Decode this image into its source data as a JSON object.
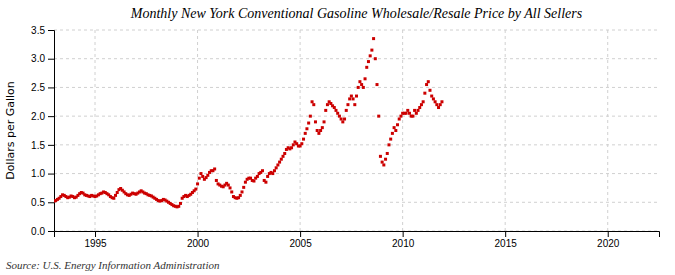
{
  "chart_data": {
    "type": "scatter",
    "title": "Monthly New York Conventional Gasoline Wholesale/Resale Price by All Sellers",
    "ylabel": "Dollars per Gallon",
    "annotations": [
      "Source: U.S. Energy Information Administration"
    ],
    "color": "#CC0000",
    "marker": "square",
    "grid": true,
    "xlim": [
      1993.0,
      2022.5
    ],
    "ylim": [
      0.0,
      3.5
    ],
    "xticks": [
      1995,
      2000,
      2005,
      2010,
      2015,
      2020
    ],
    "yticks": [
      {
        "value": 0.0,
        "label": "0.0"
      },
      0.5,
      {
        "value": 1.0,
        "label": "1.0"
      },
      1.5,
      {
        "value": 2.0,
        "label": "2.0"
      },
      2.5,
      {
        "value": 3.0,
        "label": "3.0"
      },
      3.5
    ],
    "x": [
      1993.0,
      1993.083,
      1993.167,
      1993.25,
      1993.333,
      1993.417,
      1993.5,
      1993.583,
      1993.667,
      1993.75,
      1993.833,
      1993.917,
      1994.0,
      1994.083,
      1994.167,
      1994.25,
      1994.333,
      1994.417,
      1994.5,
      1994.583,
      1994.667,
      1994.75,
      1994.833,
      1994.917,
      1995.0,
      1995.083,
      1995.167,
      1995.25,
      1995.333,
      1995.417,
      1995.5,
      1995.583,
      1995.667,
      1995.75,
      1995.833,
      1995.917,
      1996.0,
      1996.083,
      1996.167,
      1996.25,
      1996.333,
      1996.417,
      1996.5,
      1996.583,
      1996.667,
      1996.75,
      1996.833,
      1996.917,
      1997.0,
      1997.083,
      1997.167,
      1997.25,
      1997.333,
      1997.417,
      1997.5,
      1997.583,
      1997.667,
      1997.75,
      1997.833,
      1997.917,
      1998.0,
      1998.083,
      1998.167,
      1998.25,
      1998.333,
      1998.417,
      1998.5,
      1998.583,
      1998.667,
      1998.75,
      1998.833,
      1998.917,
      1999.0,
      1999.083,
      1999.167,
      1999.25,
      1999.333,
      1999.417,
      1999.5,
      1999.583,
      1999.667,
      1999.75,
      1999.833,
      1999.917,
      2000.0,
      2000.083,
      2000.167,
      2000.25,
      2000.333,
      2000.417,
      2000.5,
      2000.583,
      2000.667,
      2000.75,
      2000.833,
      2000.917,
      2001.0,
      2001.083,
      2001.167,
      2001.25,
      2001.333,
      2001.417,
      2001.5,
      2001.583,
      2001.667,
      2001.75,
      2001.833,
      2001.917,
      2002.0,
      2002.083,
      2002.167,
      2002.25,
      2002.333,
      2002.417,
      2002.5,
      2002.583,
      2002.667,
      2002.75,
      2002.833,
      2002.917,
      2003.0,
      2003.083,
      2003.167,
      2003.25,
      2003.333,
      2003.417,
      2003.5,
      2003.583,
      2003.667,
      2003.75,
      2003.833,
      2003.917,
      2004.0,
      2004.083,
      2004.167,
      2004.25,
      2004.333,
      2004.417,
      2004.5,
      2004.583,
      2004.667,
      2004.75,
      2004.833,
      2004.917,
      2005.0,
      2005.083,
      2005.167,
      2005.25,
      2005.333,
      2005.417,
      2005.5,
      2005.583,
      2005.667,
      2005.75,
      2005.833,
      2005.917,
      2006.0,
      2006.083,
      2006.167,
      2006.25,
      2006.333,
      2006.417,
      2006.5,
      2006.583,
      2006.667,
      2006.75,
      2006.833,
      2006.917,
      2007.0,
      2007.083,
      2007.167,
      2007.25,
      2007.333,
      2007.417,
      2007.5,
      2007.583,
      2007.667,
      2007.75,
      2007.833,
      2007.917,
      2008.0,
      2008.083,
      2008.167,
      2008.25,
      2008.333,
      2008.417,
      2008.5,
      2008.583,
      2008.667,
      2008.75,
      2008.833,
      2008.917,
      2009.0,
      2009.083,
      2009.167,
      2009.25,
      2009.333,
      2009.417,
      2009.5,
      2009.583,
      2009.667,
      2009.75,
      2009.833,
      2009.917,
      2010.0,
      2010.083,
      2010.167,
      2010.25,
      2010.333,
      2010.417,
      2010.5,
      2010.583,
      2010.667,
      2010.75,
      2010.833,
      2010.917,
      2011.0,
      2011.083,
      2011.167,
      2011.25,
      2011.333,
      2011.417,
      2011.5,
      2011.583,
      2011.667,
      2011.75,
      2011.833,
      2011.917
    ],
    "values": [
      0.52,
      0.53,
      0.55,
      0.57,
      0.6,
      0.63,
      0.62,
      0.6,
      0.58,
      0.59,
      0.61,
      0.6,
      0.58,
      0.59,
      0.62,
      0.65,
      0.67,
      0.66,
      0.63,
      0.62,
      0.61,
      0.6,
      0.62,
      0.61,
      0.6,
      0.61,
      0.63,
      0.65,
      0.66,
      0.68,
      0.67,
      0.65,
      0.63,
      0.6,
      0.58,
      0.57,
      0.62,
      0.67,
      0.72,
      0.74,
      0.71,
      0.68,
      0.65,
      0.63,
      0.62,
      0.64,
      0.66,
      0.65,
      0.64,
      0.66,
      0.68,
      0.7,
      0.68,
      0.66,
      0.65,
      0.63,
      0.62,
      0.61,
      0.59,
      0.57,
      0.55,
      0.53,
      0.52,
      0.53,
      0.55,
      0.54,
      0.52,
      0.5,
      0.48,
      0.46,
      0.44,
      0.43,
      0.42,
      0.43,
      0.48,
      0.57,
      0.6,
      0.62,
      0.6,
      0.62,
      0.64,
      0.67,
      0.7,
      0.73,
      0.82,
      0.92,
      1.0,
      0.95,
      0.9,
      0.93,
      0.97,
      1.02,
      1.05,
      1.05,
      1.08,
      0.88,
      0.82,
      0.8,
      0.78,
      0.77,
      0.8,
      0.83,
      0.8,
      0.75,
      0.68,
      0.6,
      0.58,
      0.57,
      0.58,
      0.62,
      0.68,
      0.76,
      0.85,
      0.9,
      0.92,
      0.92,
      0.88,
      0.87,
      0.92,
      0.95,
      1.0,
      1.02,
      1.05,
      0.88,
      0.85,
      0.95,
      1.0,
      1.02,
      1.0,
      1.05,
      1.1,
      1.15,
      1.2,
      1.25,
      1.3,
      1.35,
      1.42,
      1.45,
      1.43,
      1.45,
      1.5,
      1.55,
      1.52,
      1.48,
      1.48,
      1.52,
      1.6,
      1.7,
      1.78,
      1.88,
      2.0,
      2.25,
      2.2,
      1.9,
      1.75,
      1.7,
      1.75,
      1.8,
      1.9,
      2.1,
      2.2,
      2.25,
      2.22,
      2.18,
      2.15,
      2.1,
      2.05,
      2.0,
      1.95,
      1.9,
      1.95,
      2.1,
      2.2,
      2.3,
      2.35,
      2.3,
      2.2,
      2.35,
      2.5,
      2.6,
      2.55,
      2.5,
      2.65,
      2.85,
      2.95,
      3.05,
      3.15,
      3.35,
      3.0,
      2.55,
      2.0,
      1.3,
      1.2,
      1.15,
      1.25,
      1.35,
      1.5,
      1.6,
      1.7,
      1.8,
      1.75,
      1.85,
      1.95,
      2.0,
      2.05,
      2.05,
      2.05,
      2.1,
      2.05,
      2.0,
      2.0,
      2.1,
      2.05,
      2.1,
      2.15,
      2.2,
      2.25,
      2.4,
      2.55,
      2.6,
      2.45,
      2.35,
      2.3,
      2.25,
      2.2,
      2.15,
      2.2,
      2.25
    ]
  }
}
